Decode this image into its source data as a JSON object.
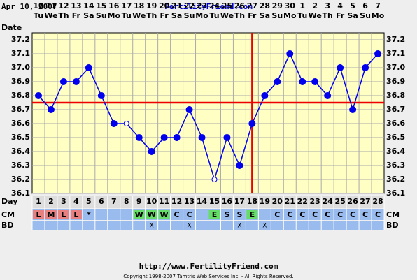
{
  "chart_data": {
    "type": "line",
    "date_text": "Apr 10, 2007",
    "site": "FertilityFriend.com",
    "date_label": "Date",
    "day_label": "Day",
    "cm_label": "CM",
    "bd_label": "BD",
    "footer_url": "http://www.FertilityFriend.com",
    "copyright": "Copyright 1998-2007 Tamtris Web Services Inc. - All Rights Reserved.",
    "days": [
      1,
      2,
      3,
      4,
      5,
      6,
      7,
      8,
      9,
      10,
      11,
      12,
      13,
      14,
      15,
      16,
      17,
      18,
      19,
      20,
      21,
      22,
      23,
      24,
      25,
      26,
      27,
      28
    ],
    "dates": [
      10,
      11,
      12,
      13,
      14,
      15,
      16,
      17,
      18,
      19,
      20,
      21,
      22,
      23,
      24,
      25,
      26,
      27,
      28,
      29,
      30,
      1,
      2,
      3,
      4,
      5,
      6,
      7
    ],
    "weekdays": [
      "Tu",
      "We",
      "Th",
      "Fr",
      "Sa",
      "Su",
      "Mo",
      "Tu",
      "We",
      "Th",
      "Fr",
      "Sa",
      "Su",
      "Mo",
      "Tu",
      "We",
      "Th",
      "Fr",
      "Sa",
      "Su",
      "Mo",
      "Tu",
      "We",
      "Th",
      "Fr",
      "Sa",
      "Su",
      "Mo"
    ],
    "values": [
      36.8,
      36.7,
      36.9,
      36.9,
      37.0,
      36.8,
      36.6,
      36.6,
      36.5,
      36.4,
      36.5,
      36.5,
      36.7,
      36.5,
      36.2,
      36.5,
      36.3,
      36.6,
      36.8,
      36.9,
      37.1,
      36.9,
      36.9,
      36.8,
      37.0,
      36.7,
      37.0,
      37.1
    ],
    "hollow_days": [
      8,
      15
    ],
    "color": "#0000ee",
    "coverline": 36.75,
    "ovulation_day": 18,
    "line_color": "#ee0000",
    "cm": [
      "L",
      "M",
      "L",
      "L",
      "*",
      null,
      null,
      null,
      "W",
      "W",
      "W",
      "C",
      "C",
      null,
      "E",
      "S",
      "S",
      "E",
      null,
      "C",
      "C",
      "C",
      "C",
      "C",
      "C",
      "C",
      "C",
      "C"
    ],
    "cm_colors": {
      "L": "#e88080",
      "M": "#e88080",
      "W": "#66dd66",
      "E": "#66dd66"
    },
    "bd": [
      null,
      null,
      null,
      null,
      null,
      null,
      null,
      null,
      null,
      "X",
      null,
      null,
      "X",
      null,
      null,
      null,
      "X",
      null,
      "X",
      null,
      null,
      null,
      null,
      null,
      null,
      null,
      null,
      null
    ],
    "ylim": [
      36.1,
      37.25
    ],
    "yticks": [
      36.1,
      36.2,
      36.3,
      36.4,
      36.5,
      36.6,
      36.7,
      36.8,
      36.9,
      {
        "value": 37.0,
        "label": "37.0"
      },
      37.1,
      37.2
    ],
    "grid": true
  }
}
